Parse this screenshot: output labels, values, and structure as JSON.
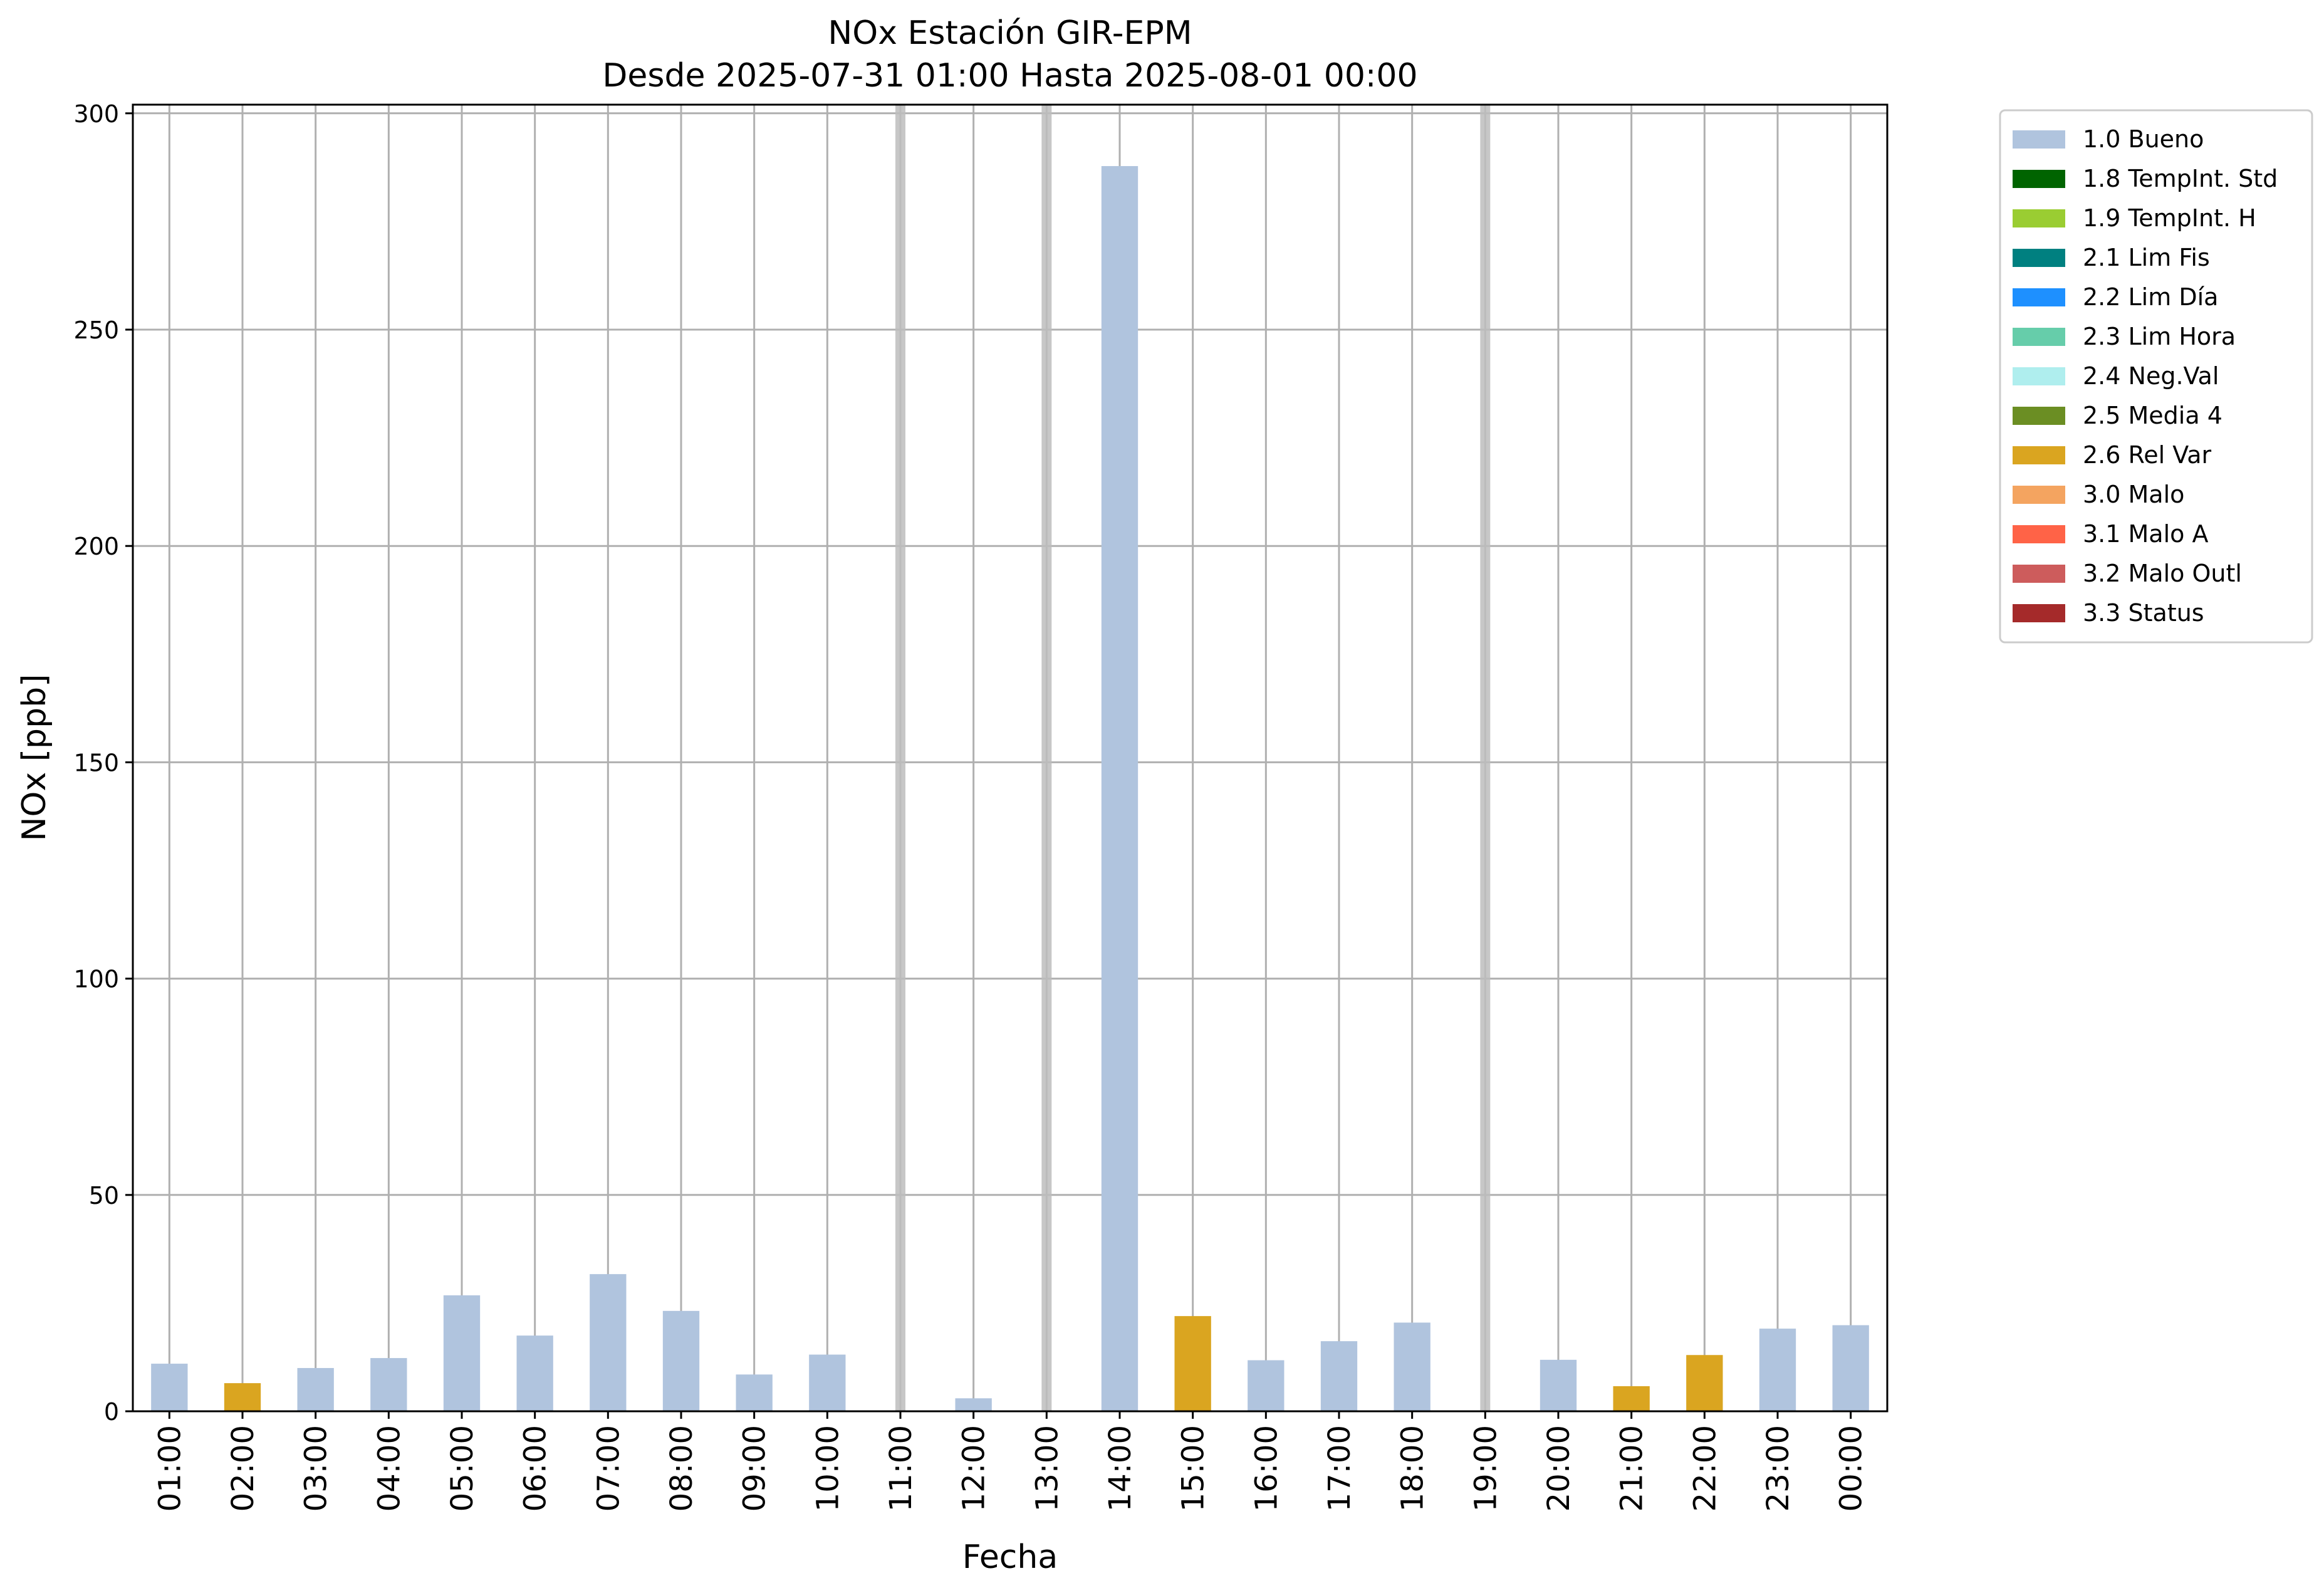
{
  "chart_data": {
    "type": "bar",
    "title": "NOx Estación GIR-EPM",
    "subtitle": "Desde 2025-07-31 01:00 Hasta 2025-08-01 00:00",
    "xlabel": "Fecha",
    "ylabel": "NOx [ppb]",
    "ylim": [
      0,
      302
    ],
    "yticks": [
      0,
      50,
      100,
      150,
      200,
      250,
      300
    ],
    "grid": true,
    "legend_position": "outside-top-right",
    "categories": [
      "01:00",
      "02:00",
      "03:00",
      "04:00",
      "05:00",
      "06:00",
      "07:00",
      "08:00",
      "09:00",
      "10:00",
      "11:00",
      "12:00",
      "13:00",
      "14:00",
      "15:00",
      "16:00",
      "17:00",
      "18:00",
      "19:00",
      "20:00",
      "21:00",
      "22:00",
      "23:00",
      "00:00"
    ],
    "values": [
      11,
      6.5,
      10,
      12.3,
      26.8,
      17.5,
      31.7,
      23.2,
      8.5,
      13.1,
      null,
      3,
      null,
      287.8,
      22,
      11.8,
      16.2,
      20.5,
      null,
      11.9,
      5.8,
      13,
      19.1,
      19.9
    ],
    "flags": [
      "1.0 Bueno",
      "2.6 Rel Var",
      "1.0 Bueno",
      "1.0 Bueno",
      "1.0 Bueno",
      "1.0 Bueno",
      "1.0 Bueno",
      "1.0 Bueno",
      "1.0 Bueno",
      "1.0 Bueno",
      null,
      "1.0 Bueno",
      null,
      "1.0 Bueno",
      "2.6 Rel Var",
      "1.0 Bueno",
      "1.0 Bueno",
      "1.0 Bueno",
      null,
      "1.0 Bueno",
      "2.6 Rel Var",
      "2.6 Rel Var",
      "1.0 Bueno",
      "1.0 Bueno"
    ],
    "missing_markers": [
      "11:00",
      "13:00",
      "19:00"
    ],
    "legend": [
      {
        "label": "1.0 Bueno",
        "color": "#b0c4de"
      },
      {
        "label": "1.8 TempInt. Std",
        "color": "#006400"
      },
      {
        "label": "1.9 TempInt. H",
        "color": "#9acd32"
      },
      {
        "label": "2.1 Lim Fis",
        "color": "#008080"
      },
      {
        "label": "2.2 Lim Día",
        "color": "#1e90ff"
      },
      {
        "label": "2.3 Lim Hora",
        "color": "#66cdaa"
      },
      {
        "label": "2.4 Neg.Val",
        "color": "#afeeee"
      },
      {
        "label": "2.5 Media 4",
        "color": "#6b8e23"
      },
      {
        "label": "2.6 Rel Var",
        "color": "#daa520"
      },
      {
        "label": "3.0 Malo",
        "color": "#f4a460"
      },
      {
        "label": "3.1 Malo A",
        "color": "#ff6347"
      },
      {
        "label": "3.2 Malo Outl",
        "color": "#cd5c5c"
      },
      {
        "label": "3.3 Status",
        "color": "#a52a2a"
      }
    ]
  }
}
